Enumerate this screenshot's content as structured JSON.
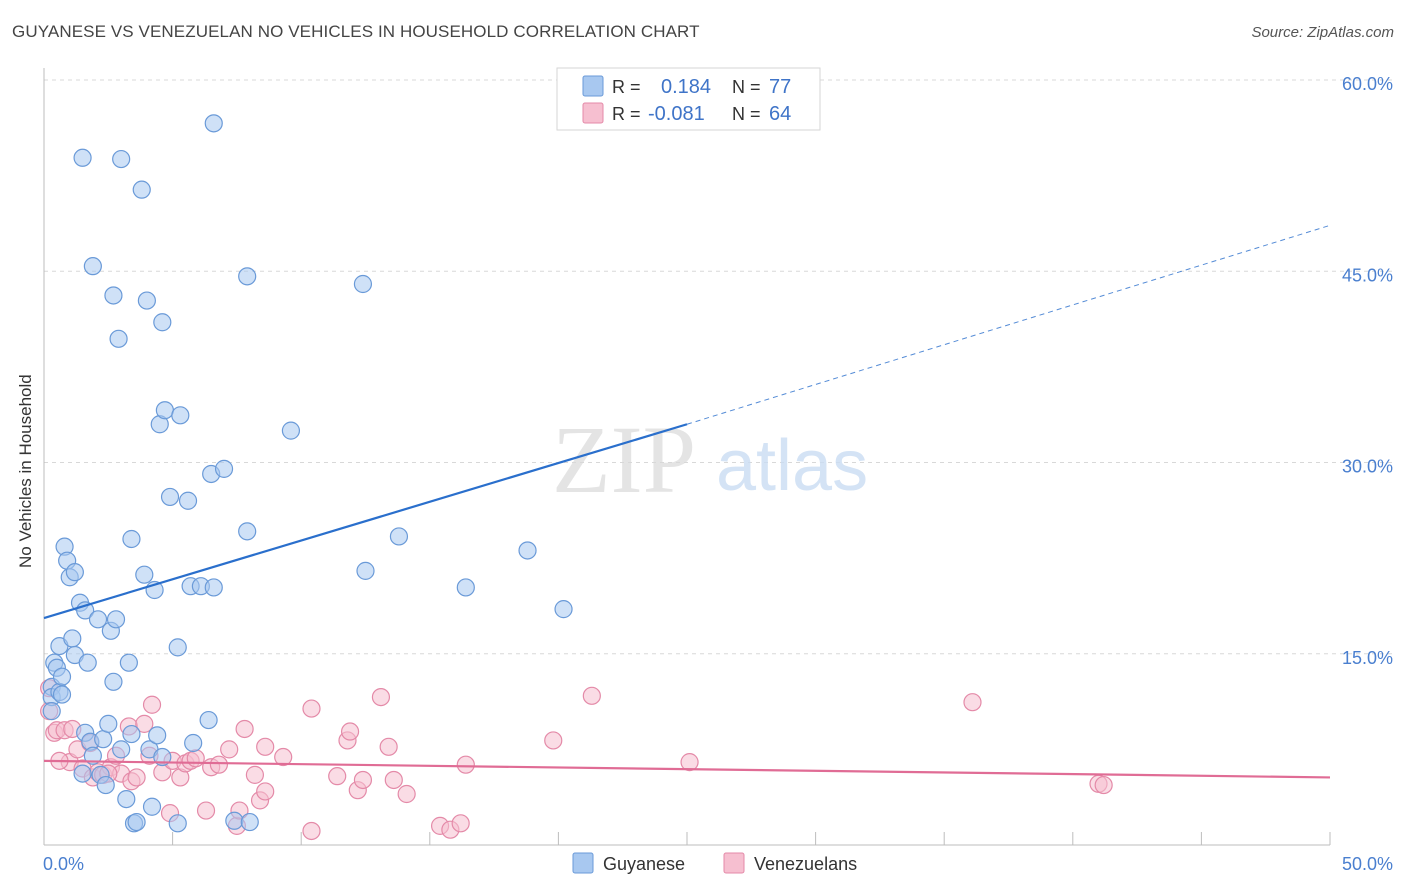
{
  "title": "GUYANESE VS VENEZUELAN NO VEHICLES IN HOUSEHOLD CORRELATION CHART",
  "source": "Source: ZipAtlas.com",
  "watermark": {
    "zip": "ZIP",
    "atlas": "atlas"
  },
  "legend": {
    "rows": [
      {
        "r_label": "R = ",
        "r_value": "0.184",
        "n_label": "N = ",
        "n_value": "77"
      },
      {
        "r_label": "R = ",
        "r_value": "-0.081",
        "n_label": "N = ",
        "n_value": "64"
      }
    ]
  },
  "colors": {
    "guyanese_fill": "#a8c8f0",
    "guyanese_stroke": "#6a9ad8",
    "guyanese_line": "#2a6fcc",
    "venezuelan_fill": "#f6bfd0",
    "venezuelan_stroke": "#e48aa8",
    "venezuelan_line": "#e06c95",
    "tick_label": "#4a7fcf",
    "grid": "#d8d8d8"
  },
  "chart_data": {
    "type": "scatter",
    "title": "GUYANESE VS VENEZUELAN NO VEHICLES IN HOUSEHOLD CORRELATION CHART",
    "xlabel": "",
    "ylabel": "No Vehicles in Household",
    "xlim": [
      0,
      50
    ],
    "ylim": [
      0,
      60
    ],
    "x_tick_labels": [
      "0.0%",
      "50.0%"
    ],
    "y_ticks": [
      15,
      30,
      45,
      60
    ],
    "y_tick_labels": [
      "15.0%",
      "30.0%",
      "45.0%",
      "60.0%"
    ],
    "grid": true,
    "legend_position": "top-center",
    "series": [
      {
        "name": "Guyanese",
        "r": 0.184,
        "n": 77,
        "trend": {
          "x0": 0,
          "y0": 17.8,
          "x1": 25,
          "y1": 33.0,
          "dashed_to_x": 50,
          "dashed_to_y": 48.6
        },
        "points": [
          [
            0.3,
            12.4
          ],
          [
            0.3,
            11.6
          ],
          [
            0.3,
            10.5
          ],
          [
            0.4,
            14.3
          ],
          [
            0.5,
            13.9
          ],
          [
            0.6,
            12.0
          ],
          [
            0.7,
            11.8
          ],
          [
            0.6,
            15.6
          ],
          [
            0.7,
            13.2
          ],
          [
            0.8,
            23.4
          ],
          [
            0.9,
            22.3
          ],
          [
            1.0,
            21.0
          ],
          [
            1.1,
            16.2
          ],
          [
            1.2,
            14.9
          ],
          [
            1.2,
            21.4
          ],
          [
            1.4,
            19.0
          ],
          [
            1.6,
            18.4
          ],
          [
            1.7,
            14.3
          ],
          [
            1.6,
            8.8
          ],
          [
            1.8,
            8.1
          ],
          [
            1.9,
            7.0
          ],
          [
            1.5,
            5.6
          ],
          [
            2.1,
            17.7
          ],
          [
            2.2,
            5.5
          ],
          [
            2.3,
            8.3
          ],
          [
            2.4,
            4.7
          ],
          [
            2.5,
            9.5
          ],
          [
            2.6,
            16.8
          ],
          [
            2.7,
            12.8
          ],
          [
            2.8,
            17.7
          ],
          [
            3.0,
            7.5
          ],
          [
            3.2,
            3.6
          ],
          [
            3.3,
            14.3
          ],
          [
            3.4,
            8.7
          ],
          [
            3.4,
            24.0
          ],
          [
            3.5,
            1.7
          ],
          [
            3.6,
            1.8
          ],
          [
            3.9,
            21.2
          ],
          [
            4.1,
            7.5
          ],
          [
            4.2,
            3.0
          ],
          [
            4.3,
            20.0
          ],
          [
            4.4,
            8.6
          ],
          [
            4.5,
            33.0
          ],
          [
            4.6,
            6.9
          ],
          [
            4.7,
            34.1
          ],
          [
            4.9,
            27.3
          ],
          [
            5.2,
            15.5
          ],
          [
            5.2,
            1.7
          ],
          [
            5.3,
            33.7
          ],
          [
            5.6,
            27.0
          ],
          [
            5.7,
            20.3
          ],
          [
            5.8,
            8.0
          ],
          [
            6.1,
            20.3
          ],
          [
            6.4,
            9.8
          ],
          [
            6.5,
            29.1
          ],
          [
            6.6,
            20.2
          ],
          [
            7.0,
            29.5
          ],
          [
            7.4,
            1.9
          ],
          [
            7.9,
            24.6
          ],
          [
            1.5,
            53.9
          ],
          [
            1.9,
            45.4
          ],
          [
            2.7,
            43.1
          ],
          [
            2.9,
            39.7
          ],
          [
            3.0,
            53.8
          ],
          [
            3.8,
            51.4
          ],
          [
            4.0,
            42.7
          ],
          [
            4.6,
            41.0
          ],
          [
            6.6,
            56.6
          ],
          [
            7.9,
            44.6
          ],
          [
            9.6,
            32.5
          ],
          [
            12.5,
            21.5
          ],
          [
            12.4,
            44.0
          ],
          [
            13.8,
            24.2
          ],
          [
            16.4,
            20.2
          ],
          [
            18.8,
            23.1
          ],
          [
            20.2,
            18.5
          ],
          [
            8.0,
            1.8
          ]
        ]
      },
      {
        "name": "Venezuelans",
        "r": -0.081,
        "n": 64,
        "trend": {
          "x0": 0,
          "y0": 6.6,
          "x1": 50,
          "y1": 5.3
        },
        "points": [
          [
            0.2,
            12.3
          ],
          [
            0.2,
            10.5
          ],
          [
            0.4,
            8.8
          ],
          [
            0.5,
            9.0
          ],
          [
            0.8,
            9.0
          ],
          [
            1.0,
            6.5
          ],
          [
            1.3,
            7.5
          ],
          [
            1.5,
            6.0
          ],
          [
            1.8,
            8.0
          ],
          [
            1.9,
            5.3
          ],
          [
            2.1,
            5.7
          ],
          [
            2.3,
            5.5
          ],
          [
            2.6,
            6.1
          ],
          [
            2.8,
            7.0
          ],
          [
            3.0,
            5.6
          ],
          [
            3.3,
            9.3
          ],
          [
            3.4,
            5.0
          ],
          [
            3.6,
            5.3
          ],
          [
            3.9,
            9.5
          ],
          [
            4.1,
            7.0
          ],
          [
            4.2,
            11.0
          ],
          [
            4.6,
            5.7
          ],
          [
            4.9,
            2.5
          ],
          [
            5.0,
            6.6
          ],
          [
            5.3,
            5.3
          ],
          [
            5.5,
            6.4
          ],
          [
            5.7,
            6.6
          ],
          [
            5.9,
            6.8
          ],
          [
            6.3,
            2.7
          ],
          [
            6.5,
            6.1
          ],
          [
            6.8,
            6.3
          ],
          [
            7.2,
            7.5
          ],
          [
            7.5,
            1.5
          ],
          [
            7.6,
            2.7
          ],
          [
            7.8,
            9.1
          ],
          [
            8.2,
            5.5
          ],
          [
            8.4,
            3.5
          ],
          [
            8.6,
            4.2
          ],
          [
            8.6,
            7.7
          ],
          [
            9.3,
            6.9
          ],
          [
            10.4,
            1.1
          ],
          [
            10.4,
            10.7
          ],
          [
            11.4,
            5.4
          ],
          [
            11.8,
            8.2
          ],
          [
            11.9,
            8.9
          ],
          [
            12.2,
            4.3
          ],
          [
            12.4,
            5.1
          ],
          [
            13.1,
            11.6
          ],
          [
            13.4,
            7.7
          ],
          [
            13.6,
            5.1
          ],
          [
            14.1,
            4.0
          ],
          [
            15.4,
            1.5
          ],
          [
            15.8,
            1.2
          ],
          [
            16.2,
            1.7
          ],
          [
            16.4,
            6.3
          ],
          [
            19.8,
            8.2
          ],
          [
            21.3,
            11.7
          ],
          [
            25.1,
            6.5
          ],
          [
            36.1,
            11.2
          ],
          [
            41.0,
            4.8
          ],
          [
            41.2,
            4.7
          ],
          [
            0.6,
            6.6
          ],
          [
            1.1,
            9.1
          ],
          [
            2.5,
            5.6
          ]
        ]
      }
    ]
  },
  "bottom_legend": {
    "items": [
      "Guyanese",
      "Venezuelans"
    ]
  }
}
